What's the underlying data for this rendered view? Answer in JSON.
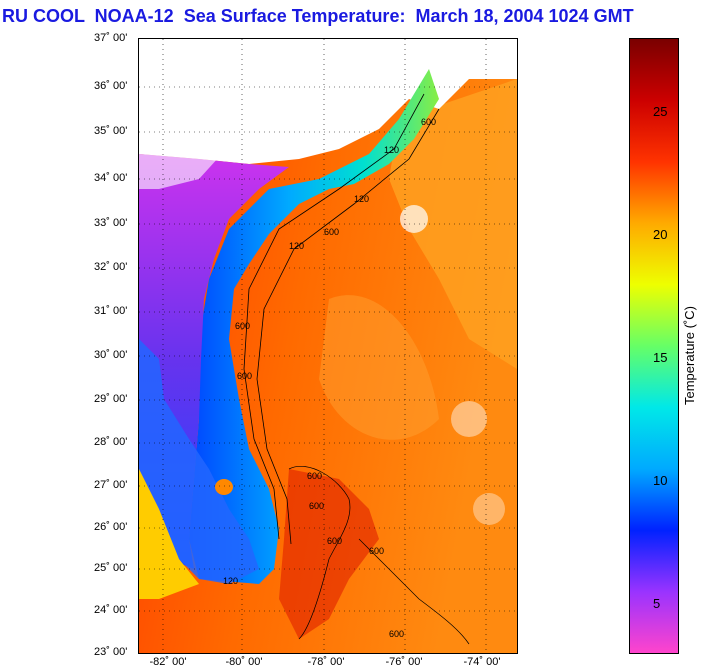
{
  "title": "RU COOL  NOAA-12  Sea Surface Temperature:  March 18, 2004 1024 GMT",
  "map": {
    "lat_labels": [
      "37˚ 00'",
      "36˚ 00'",
      "35˚ 00'",
      "34˚ 00'",
      "33˚ 00'",
      "32˚ 00'",
      "31˚ 00'",
      "30˚ 00'",
      "29˚ 00'",
      "28˚ 00'",
      "27˚ 00'",
      "26˚ 00'",
      "25˚ 00'",
      "24˚ 00'",
      "23˚ 00'"
    ],
    "lon_labels": [
      "-82˚ 00'",
      "-80˚ 00'",
      "-78˚ 00'",
      "-76˚ 00'",
      "-74˚ 00'"
    ],
    "isobath_labels": [
      "600",
      "120",
      "120",
      "600",
      "120",
      "600",
      "600",
      "120",
      "600",
      "600",
      "600",
      "600",
      "600"
    ]
  },
  "colorbar": {
    "label": "Temperature (˚C)",
    "ticks": [
      "25",
      "20",
      "15",
      "10",
      "5"
    ],
    "colors": [
      "#ff44cc",
      "#9933ff",
      "#0022ff",
      "#00aaff",
      "#00e8e8",
      "#66ff66",
      "#eeff00",
      "#ffaa00",
      "#ff3300",
      "#cc0000",
      "#7a0000"
    ]
  }
}
